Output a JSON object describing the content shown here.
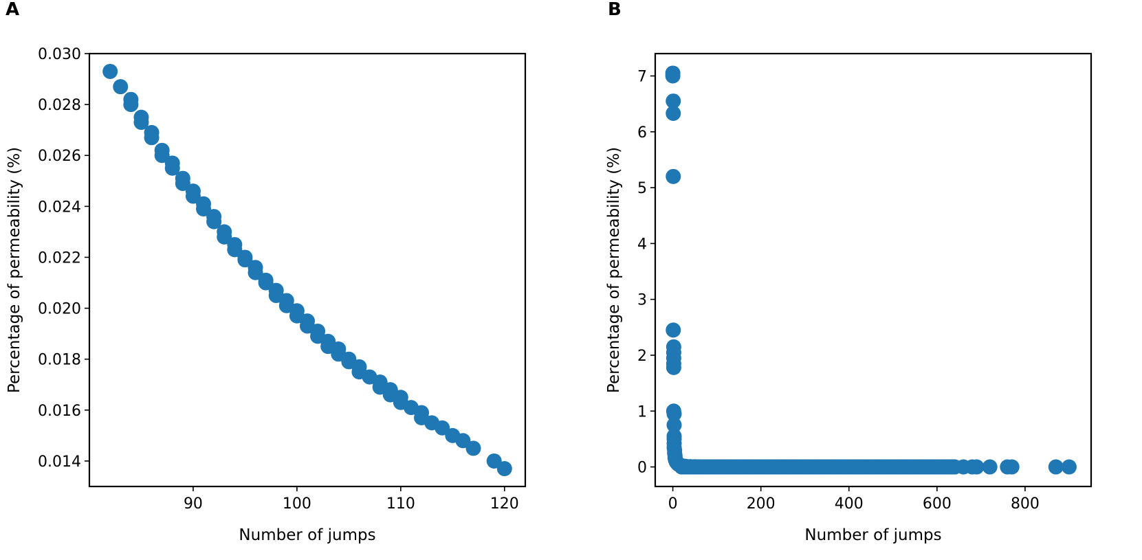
{
  "chart_data": [
    {
      "id": "A",
      "panel_label": "A",
      "type": "scatter",
      "title": "",
      "xlabel": "Number of jumps",
      "ylabel": "Percentage of permeability (%)",
      "xlim": [
        80,
        122
      ],
      "ylim": [
        0.013,
        0.03
      ],
      "xticks": [
        90,
        100,
        110,
        120
      ],
      "xtick_labels": [
        "90",
        "100",
        "110",
        "120"
      ],
      "yticks": [
        0.014,
        0.016,
        0.018,
        0.02,
        0.022,
        0.024,
        0.026,
        0.028,
        0.03
      ],
      "ytick_labels": [
        "0.014",
        "0.016",
        "0.018",
        "0.020",
        "0.022",
        "0.024",
        "0.026",
        "0.028",
        "0.030"
      ],
      "color": "#1f77b4",
      "series": [
        {
          "name": "permeability",
          "x": [
            82,
            83,
            84,
            84,
            85,
            85,
            86,
            86,
            87,
            87,
            88,
            88,
            89,
            89,
            90,
            90,
            91,
            91,
            92,
            92,
            93,
            93,
            94,
            94,
            95,
            95,
            96,
            96,
            97,
            97,
            98,
            98,
            99,
            99,
            100,
            100,
            101,
            101,
            102,
            102,
            103,
            103,
            104,
            104,
            105,
            105,
            106,
            106,
            107,
            108,
            108,
            109,
            109,
            110,
            110,
            111,
            112,
            112,
            113,
            114,
            115,
            116,
            117,
            119,
            120
          ],
          "y": [
            0.0293,
            0.0287,
            0.0282,
            0.028,
            0.0275,
            0.0273,
            0.0269,
            0.0267,
            0.0262,
            0.026,
            0.0257,
            0.0255,
            0.0251,
            0.0249,
            0.0246,
            0.0244,
            0.0241,
            0.0239,
            0.0236,
            0.0234,
            0.023,
            0.0228,
            0.0225,
            0.0223,
            0.022,
            0.0219,
            0.0216,
            0.0214,
            0.0211,
            0.021,
            0.0207,
            0.0205,
            0.0203,
            0.0201,
            0.0199,
            0.0197,
            0.0195,
            0.0193,
            0.0191,
            0.0189,
            0.0187,
            0.0185,
            0.0184,
            0.0182,
            0.018,
            0.0179,
            0.0177,
            0.0175,
            0.0173,
            0.0171,
            0.0169,
            0.0168,
            0.0166,
            0.0165,
            0.0163,
            0.0161,
            0.0159,
            0.0157,
            0.0155,
            0.0153,
            0.015,
            0.0148,
            0.0145,
            0.014,
            0.0137
          ]
        }
      ]
    },
    {
      "id": "B",
      "panel_label": "B",
      "type": "scatter",
      "title": "",
      "xlabel": "Number of jumps",
      "ylabel": "Percentage of permeability (%)",
      "xlim": [
        -40,
        950
      ],
      "ylim": [
        -0.35,
        7.4
      ],
      "xticks": [
        0,
        200,
        400,
        600,
        800
      ],
      "xtick_labels": [
        "0",
        "200",
        "400",
        "600",
        "800"
      ],
      "yticks": [
        0,
        1,
        2,
        3,
        4,
        5,
        6,
        7
      ],
      "ytick_labels": [
        "0",
        "1",
        "2",
        "3",
        "4",
        "5",
        "6",
        "7"
      ],
      "color": "#1f77b4",
      "series": [
        {
          "name": "permeability",
          "x": [
            0,
            0,
            1,
            1,
            1,
            1,
            2,
            2,
            2,
            2,
            2,
            2,
            3,
            3,
            3,
            3,
            3,
            3,
            4,
            4,
            5,
            5,
            6,
            7,
            8,
            9,
            10,
            12,
            14,
            17,
            20,
            25,
            30,
            40,
            50,
            60,
            80,
            100,
            120,
            150,
            180,
            210,
            240,
            270,
            300,
            330,
            360,
            390,
            420,
            450,
            480,
            510,
            540,
            570,
            600,
            620,
            640,
            660,
            680,
            690,
            720,
            760,
            770,
            870,
            900
          ],
          "y": [
            7.05,
            7.0,
            6.55,
            6.33,
            5.2,
            2.45,
            2.15,
            2.05,
            1.95,
            1.85,
            1.78,
            1.0,
            0.95,
            0.75,
            0.55,
            0.5,
            0.42,
            0.35,
            0.3,
            0.25,
            0.2,
            0.16,
            0.13,
            0.11,
            0.09,
            0.08,
            0.07,
            0.05,
            0.04,
            0.03,
            0.02,
            0.015,
            0.01,
            0.005,
            0.003,
            0.002,
            0.001,
            0.001,
            0.0,
            0.0,
            0.0,
            0.0,
            0.0,
            0.0,
            0.0,
            0.0,
            0.0,
            0.0,
            0.0,
            0.0,
            0.0,
            0.0,
            0.0,
            0.0,
            0.0,
            0.0,
            0.0,
            0.0,
            0.0,
            0.0,
            0.0,
            0.0,
            0.0,
            0.0,
            0.0
          ],
          "dense_x_range": [
            20,
            640
          ],
          "dense_y": 0.0
        }
      ]
    }
  ]
}
